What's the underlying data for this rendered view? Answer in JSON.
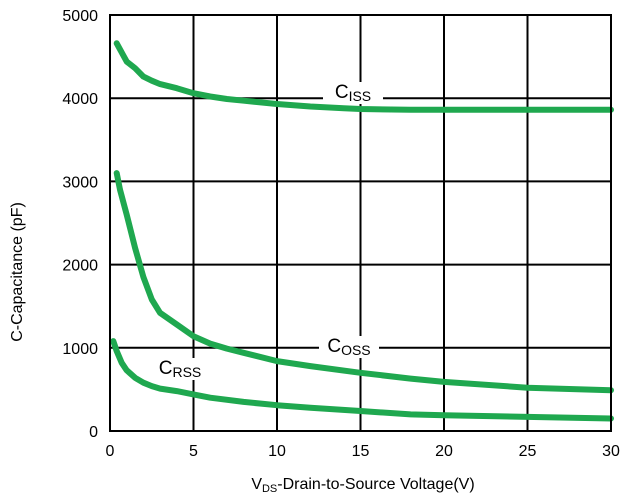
{
  "chart_data": {
    "type": "line",
    "title": "",
    "xlabel": {
      "main": "V",
      "sub": "DS",
      "rest": "-Drain-to-Source Voltage(V)"
    },
    "ylabel": "C-Capacitance (pF)",
    "xlim": [
      0,
      30
    ],
    "ylim": [
      0,
      5000
    ],
    "x_ticks": [
      0,
      5,
      10,
      15,
      20,
      25,
      30
    ],
    "y_ticks": [
      0,
      1000,
      2000,
      3000,
      4000,
      5000
    ],
    "grid": true,
    "legend": "none",
    "line_color": "#1fa84f",
    "series": [
      {
        "name": "ISS",
        "label_main": "C",
        "label_sub": "ISS",
        "x": [
          0.4,
          1,
          1.5,
          2,
          2.5,
          3,
          4,
          5,
          6,
          7,
          8,
          10,
          12,
          14,
          15,
          18,
          20,
          25,
          30
        ],
        "y": [
          4660,
          4440,
          4360,
          4260,
          4210,
          4170,
          4120,
          4060,
          4020,
          3990,
          3970,
          3930,
          3900,
          3880,
          3870,
          3860,
          3860,
          3860,
          3860
        ]
      },
      {
        "name": "OSS",
        "label_main": "C",
        "label_sub": "OSS",
        "x": [
          0.4,
          0.6,
          1,
          1.5,
          2,
          2.5,
          3,
          4,
          5,
          6,
          7,
          8,
          10,
          12,
          15,
          18,
          20,
          25,
          30
        ],
        "y": [
          3100,
          2900,
          2600,
          2200,
          1850,
          1580,
          1420,
          1280,
          1140,
          1050,
          990,
          940,
          840,
          780,
          700,
          630,
          590,
          520,
          490
        ]
      },
      {
        "name": "RSS",
        "label_main": "C",
        "label_sub": "RSS",
        "x": [
          0.2,
          0.4,
          0.7,
          1,
          1.5,
          2,
          2.5,
          3,
          4,
          5,
          6,
          8,
          10,
          12,
          15,
          18,
          20,
          25,
          30
        ],
        "y": [
          1080,
          960,
          820,
          730,
          640,
          580,
          540,
          510,
          480,
          440,
          400,
          350,
          310,
          280,
          240,
          200,
          190,
          170,
          150
        ]
      }
    ]
  }
}
